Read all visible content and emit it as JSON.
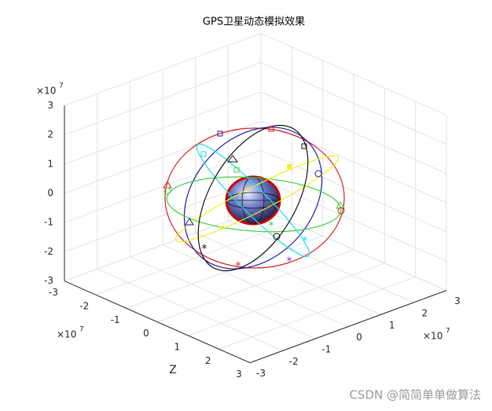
{
  "chart_data": {
    "type": "orbit3d",
    "title": "GPS卫星动态模拟效果",
    "xlabel": "Z",
    "multiplier": "×10",
    "exponent": "7",
    "xlim": [
      -3,
      3
    ],
    "ylim": [
      -3,
      3
    ],
    "zlim": [
      -3,
      3
    ],
    "xticks": [
      -3,
      -2,
      -1,
      0,
      1,
      2,
      3
    ],
    "yticks": [
      -3,
      -2,
      -1,
      0,
      1,
      2,
      3
    ],
    "zticks": [
      -3,
      -2,
      -1,
      0,
      1,
      2,
      3
    ],
    "grid": true
  },
  "watermark": "CSDN @简简单单做算法"
}
